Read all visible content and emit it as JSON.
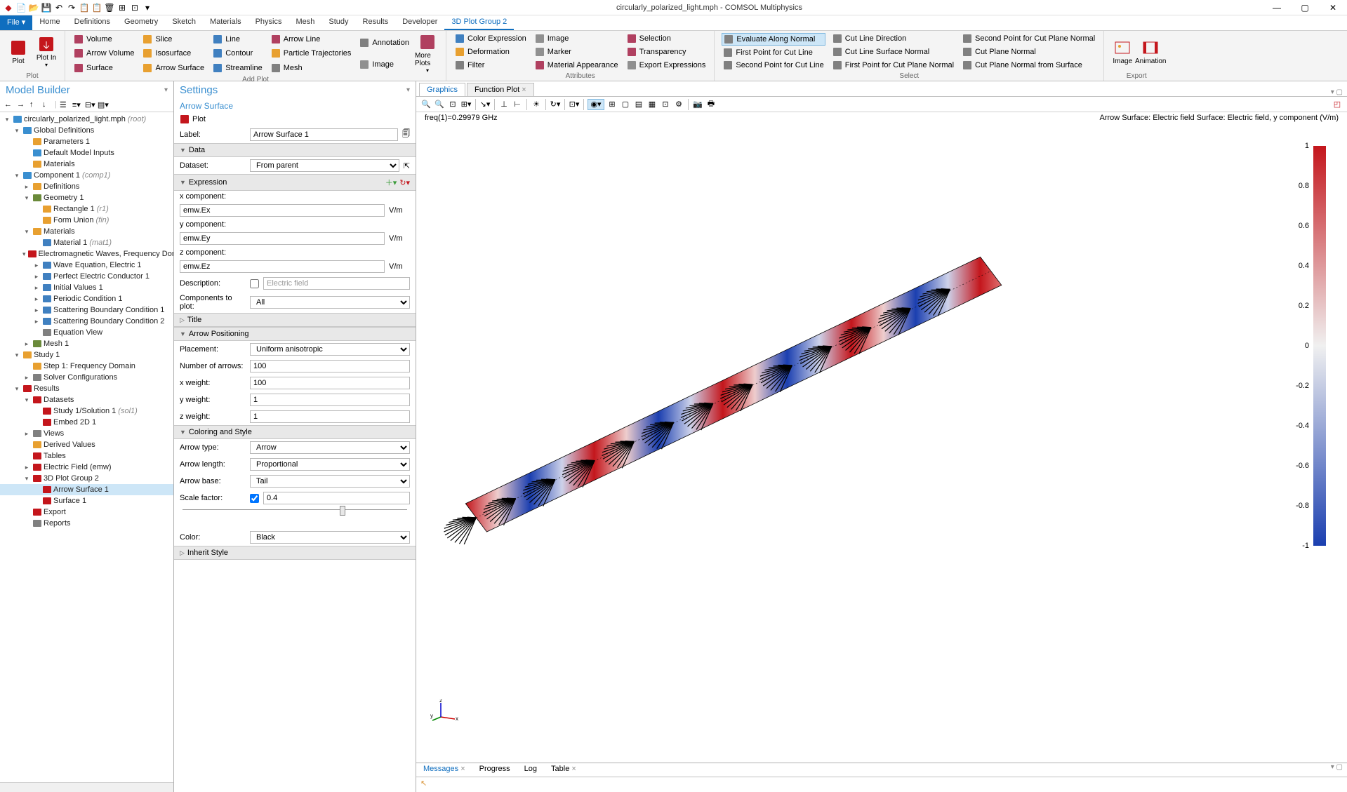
{
  "title": "circularly_polarized_light.mph - COMSOL Multiphysics",
  "ribbon_tabs": [
    "File",
    "Home",
    "Definitions",
    "Geometry",
    "Sketch",
    "Materials",
    "Physics",
    "Mesh",
    "Study",
    "Results",
    "Developer",
    "3D Plot Group 2"
  ],
  "active_ribbon": 11,
  "ribbon": {
    "plot": {
      "label": "Plot",
      "items": [
        "Plot",
        "Plot In"
      ]
    },
    "addplot": {
      "label": "Add Plot",
      "cols": [
        [
          "Volume",
          "Arrow Volume",
          "Surface"
        ],
        [
          "Slice",
          "Isosurface",
          "Arrow Surface"
        ],
        [
          "Line",
          "Contour",
          "Streamline"
        ],
        [
          "Arrow Line",
          "Particle Trajectories",
          "Mesh"
        ],
        [
          "Annotation",
          "Image"
        ]
      ],
      "more": "More Plots"
    },
    "attributes": {
      "label": "Attributes",
      "cols": [
        [
          "Color Expression",
          "Deformation",
          "Filter"
        ],
        [
          "Image",
          "Marker",
          "Material Appearance"
        ],
        [
          "Selection",
          "Transparency",
          "Export Expressions"
        ]
      ]
    },
    "select": {
      "label": "Select",
      "cols": [
        [
          "Evaluate Along Normal",
          "First Point for Cut Line",
          "Second Point for Cut Line"
        ],
        [
          "Cut Line Direction",
          "Cut Line Surface Normal",
          "First Point for Cut Plane Normal"
        ],
        [
          "Second Point for Cut Plane Normal",
          "Cut Plane Normal",
          "Cut Plane Normal from Surface"
        ]
      ]
    },
    "export": {
      "label": "Export",
      "items": [
        "Image",
        "Animation"
      ]
    }
  },
  "model_builder": {
    "title": "Model Builder",
    "tree": [
      {
        "d": 0,
        "t": "▾",
        "i": "root",
        "l": "circularly_polarized_light.mph",
        "h": "(root)"
      },
      {
        "d": 1,
        "t": "▾",
        "i": "glob",
        "l": "Global Definitions"
      },
      {
        "d": 2,
        "t": "",
        "i": "param",
        "l": "Parameters 1"
      },
      {
        "d": 2,
        "t": "",
        "i": "dmi",
        "l": "Default Model Inputs"
      },
      {
        "d": 2,
        "t": "",
        "i": "mat",
        "l": "Materials"
      },
      {
        "d": 1,
        "t": "▾",
        "i": "comp",
        "l": "Component 1",
        "h": "(comp1)"
      },
      {
        "d": 2,
        "t": "▸",
        "i": "def",
        "l": "Definitions"
      },
      {
        "d": 2,
        "t": "▾",
        "i": "geom",
        "l": "Geometry 1"
      },
      {
        "d": 3,
        "t": "",
        "i": "rect",
        "l": "Rectangle 1",
        "h": "(r1)"
      },
      {
        "d": 3,
        "t": "",
        "i": "union",
        "l": "Form Union",
        "h": "(fin)"
      },
      {
        "d": 2,
        "t": "▾",
        "i": "mat",
        "l": "Materials"
      },
      {
        "d": 3,
        "t": "",
        "i": "mat1",
        "l": "Material 1",
        "h": "(mat1)"
      },
      {
        "d": 2,
        "t": "▾",
        "i": "phys",
        "l": "Electromagnetic Waves, Frequency Domain"
      },
      {
        "d": 3,
        "t": "▸",
        "i": "we",
        "l": "Wave Equation, Electric 1"
      },
      {
        "d": 3,
        "t": "▸",
        "i": "pec",
        "l": "Perfect Electric Conductor 1"
      },
      {
        "d": 3,
        "t": "▸",
        "i": "iv",
        "l": "Initial Values 1"
      },
      {
        "d": 3,
        "t": "▸",
        "i": "pc",
        "l": "Periodic Condition 1"
      },
      {
        "d": 3,
        "t": "▸",
        "i": "sbc",
        "l": "Scattering Boundary Condition 1"
      },
      {
        "d": 3,
        "t": "▸",
        "i": "sbc",
        "l": "Scattering Boundary Condition 2"
      },
      {
        "d": 3,
        "t": "",
        "i": "eq",
        "l": "Equation View"
      },
      {
        "d": 2,
        "t": "▸",
        "i": "mesh",
        "l": "Mesh 1"
      },
      {
        "d": 1,
        "t": "▾",
        "i": "study",
        "l": "Study 1"
      },
      {
        "d": 2,
        "t": "",
        "i": "step",
        "l": "Step 1: Frequency Domain"
      },
      {
        "d": 2,
        "t": "▸",
        "i": "solver",
        "l": "Solver Configurations"
      },
      {
        "d": 1,
        "t": "▾",
        "i": "res",
        "l": "Results"
      },
      {
        "d": 2,
        "t": "▾",
        "i": "ds",
        "l": "Datasets"
      },
      {
        "d": 3,
        "t": "",
        "i": "sol",
        "l": "Study 1/Solution 1",
        "h": "(sol1)"
      },
      {
        "d": 3,
        "t": "",
        "i": "e2d",
        "l": "Embed 2D 1"
      },
      {
        "d": 2,
        "t": "▸",
        "i": "views",
        "l": "Views"
      },
      {
        "d": 2,
        "t": "",
        "i": "dv",
        "l": "Derived Values"
      },
      {
        "d": 2,
        "t": "",
        "i": "tbl",
        "l": "Tables"
      },
      {
        "d": 2,
        "t": "▸",
        "i": "ef",
        "l": "Electric Field (emw)"
      },
      {
        "d": 2,
        "t": "▾",
        "i": "pg",
        "l": "3D Plot Group 2"
      },
      {
        "d": 3,
        "t": "",
        "i": "as",
        "l": "Arrow Surface 1",
        "sel": true
      },
      {
        "d": 3,
        "t": "",
        "i": "surf",
        "l": "Surface 1"
      },
      {
        "d": 2,
        "t": "",
        "i": "exp",
        "l": "Export"
      },
      {
        "d": 2,
        "t": "",
        "i": "rep",
        "l": "Reports"
      }
    ]
  },
  "settings": {
    "title": "Settings",
    "subtitle": "Arrow Surface",
    "crumb": "Plot",
    "label_field": "Arrow Surface 1",
    "data": {
      "section": "Data",
      "dataset_label": "Dataset:",
      "dataset": "From parent"
    },
    "expr": {
      "section": "Expression",
      "x_label": "x component:",
      "x": "emw.Ex",
      "x_unit": "V/m",
      "y_label": "y component:",
      "y": "emw.Ey",
      "y_unit": "V/m",
      "z_label": "z component:",
      "z": "emw.Ez",
      "z_unit": "V/m",
      "desc_label": "Description:",
      "desc": "Electric field",
      "comp_label": "Components to plot:",
      "comp": "All"
    },
    "title_sec": "Title",
    "arrow_pos": {
      "section": "Arrow Positioning",
      "placement_label": "Placement:",
      "placement": "Uniform anisotropic",
      "num_label": "Number of arrows:",
      "num": "100",
      "xw_label": "x weight:",
      "xw": "100",
      "yw_label": "y weight:",
      "yw": "1",
      "zw_label": "z weight:",
      "zw": "1"
    },
    "color": {
      "section": "Coloring and Style",
      "type_label": "Arrow type:",
      "type": "Arrow",
      "len_label": "Arrow length:",
      "len": "Proportional",
      "base_label": "Arrow base:",
      "base": "Tail",
      "scale_label": "Scale factor:",
      "scale": "0.4",
      "color_label": "Color:",
      "color_val": "Black"
    },
    "inherit": "Inherit Style",
    "label_label": "Label:"
  },
  "graphics": {
    "tabs": [
      "Graphics",
      "Function Plot"
    ],
    "info_left": "freq(1)=0.29979 GHz",
    "info_right": "Arrow Surface: Electric field  Surface: Electric field, y component (V/m)",
    "colorbar": {
      "ticks": [
        1,
        0.8,
        0.6,
        0.4,
        0.2,
        0,
        -0.2,
        -0.4,
        -0.6,
        -0.8,
        -1
      ],
      "top_color": "#c4161c",
      "mid_color": "#f0f0f0",
      "bot_color": "#1b3fb0"
    },
    "axes": {
      "x": "x",
      "y": "y",
      "z": "z"
    }
  },
  "messages": {
    "tabs": [
      "Messages",
      "Progress",
      "Log",
      "Table"
    ]
  }
}
